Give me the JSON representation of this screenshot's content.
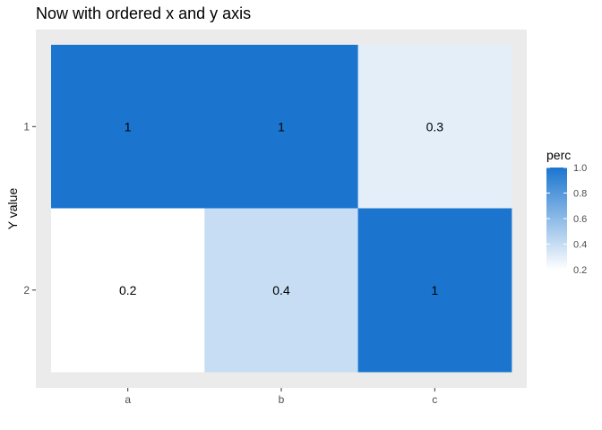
{
  "chart_data": {
    "type": "heatmap",
    "title": "Now with ordered x and y axis",
    "xlabel": "",
    "ylabel": "Y value",
    "x_categories": [
      "a",
      "b",
      "c"
    ],
    "y_categories": [
      "1",
      "2"
    ],
    "cells": [
      {
        "x": "a",
        "y": "1",
        "value": 1,
        "label": "1"
      },
      {
        "x": "b",
        "y": "1",
        "value": 1,
        "label": "1"
      },
      {
        "x": "c",
        "y": "1",
        "value": 0.3,
        "label": "0.3"
      },
      {
        "x": "a",
        "y": "2",
        "value": 0.2,
        "label": "0.2"
      },
      {
        "x": "b",
        "y": "2",
        "value": 0.4,
        "label": "0.4"
      },
      {
        "x": "c",
        "y": "2",
        "value": 1,
        "label": "1"
      }
    ],
    "legend": {
      "title": "perc",
      "min": 0.2,
      "max": 1.0,
      "ticks": [
        "0.2",
        "0.4",
        "0.6",
        "0.8",
        "1.0"
      ],
      "low_color": "#ffffff",
      "high_color": "#1b75cf",
      "placement": "right"
    },
    "panel_background": "#ebebeb",
    "grid": false
  }
}
